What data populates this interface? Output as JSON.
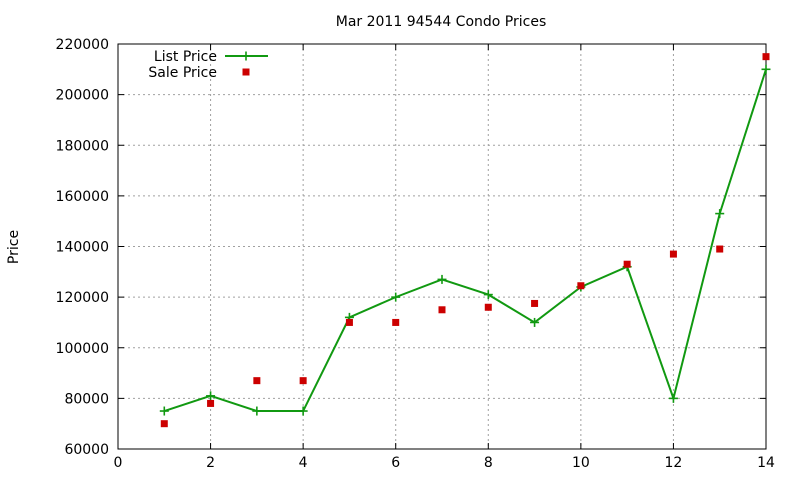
{
  "chart_data": {
    "type": "line",
    "title": "Mar 2011 94544 Condo Prices",
    "xlabel": "",
    "ylabel": "Price",
    "xlim": [
      0,
      14
    ],
    "ylim": [
      60000,
      220000
    ],
    "xticks": [
      0,
      2,
      4,
      6,
      8,
      10,
      12,
      14
    ],
    "yticks": [
      60000,
      80000,
      100000,
      120000,
      140000,
      160000,
      180000,
      200000,
      220000
    ],
    "grid": true,
    "legend_position": "top-left",
    "series": [
      {
        "name": "List Price",
        "style": "line-plus",
        "color": "#119911",
        "x": [
          1,
          2,
          3,
          4,
          5,
          6,
          7,
          8,
          9,
          10,
          11,
          12,
          13,
          14
        ],
        "y": [
          75000,
          81000,
          75000,
          75000,
          112000,
          120000,
          127000,
          121000,
          110000,
          124000,
          132000,
          80000,
          153000,
          210000
        ]
      },
      {
        "name": "Sale Price",
        "style": "square-points",
        "color": "#cc0000",
        "x": [
          1,
          2,
          3,
          4,
          5,
          6,
          7,
          8,
          9,
          10,
          11,
          12,
          13,
          14
        ],
        "y": [
          70000,
          78000,
          87000,
          87000,
          110000,
          110000,
          115000,
          116000,
          117500,
          124500,
          133000,
          137000,
          139000,
          215000
        ]
      }
    ]
  }
}
